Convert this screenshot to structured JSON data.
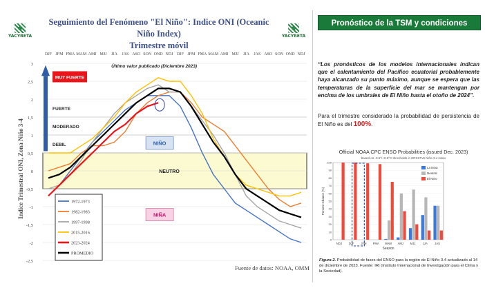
{
  "left_panel": {
    "logo_text": "YACYRETA",
    "title_line1": "Seguimiento del Fenómeno \"El Niño\": Indice ONI (Oceanic Niño Index)",
    "title_line2": "Trimestre móvil",
    "ylabel": "Indice Trimestral ONI, Zona Niño 3-4",
    "last_value_note": "Último valor publicado  (Diciembre 2023)",
    "source": "Fuente de datos: NOAA, OMM"
  },
  "chart_data": [
    {
      "type": "line",
      "categories": [
        "DJF",
        "JFM",
        "FMA",
        "MAM",
        "AMJ",
        "MJJ",
        "JJA",
        "JAS",
        "ASO",
        "SON",
        "OND",
        "NDJ",
        "DJF",
        "JFM",
        "FMA",
        "MAM",
        "AMJ",
        "MJJ",
        "JJA",
        "JAS",
        "ASO",
        "SON",
        "OND",
        "NDJ"
      ],
      "ylim": [
        -2.5,
        3
      ],
      "yticks": [
        "3",
        "2,5",
        "2",
        "1,5",
        "1",
        "0,5",
        "0",
        "-0,5",
        "-1",
        "-1,5",
        "-2",
        "-2,5"
      ],
      "ytick_values": [
        3,
        2.5,
        2,
        1.5,
        1,
        0.5,
        0,
        -0.5,
        -1,
        -1.5,
        -2,
        -2.5
      ],
      "bands": [
        {
          "label": "MUY FUERTE",
          "from": 2.0,
          "to": 2.8
        },
        {
          "label": "FUERTE",
          "from": 1.5,
          "to": 2.0
        },
        {
          "label": "MODERADO",
          "from": 1.0,
          "to": 1.5
        },
        {
          "label": "DEBIL",
          "from": 0.5,
          "to": 1.0
        },
        {
          "label": "NEUTRO",
          "from": -0.5,
          "to": 0.5
        }
      ],
      "region_labels": {
        "nino": "NIÑO",
        "nina": "NIÑA"
      },
      "series": [
        {
          "name": "1972-1973",
          "color": "#4472c4",
          "values": [
            -0.7,
            -0.4,
            0.0,
            0.4,
            0.8,
            1.1,
            1.4,
            1.7,
            1.9,
            2.1,
            2.1,
            2.1,
            1.8,
            1.2,
            0.5,
            -0.1,
            -0.5,
            -0.9,
            -1.1,
            -1.3,
            -1.5,
            -1.7,
            -1.9,
            -2.0
          ]
        },
        {
          "name": "1982-1983",
          "color": "#ed7d31",
          "values": [
            0.0,
            0.1,
            0.2,
            0.5,
            0.7,
            0.7,
            0.8,
            1.1,
            1.6,
            1.9,
            2.1,
            2.2,
            2.2,
            1.9,
            1.5,
            1.3,
            1.1,
            0.7,
            0.3,
            -0.1,
            -0.5,
            -0.8,
            -1.0,
            -0.9
          ]
        },
        {
          "name": "1997-1998",
          "color": "#a5a5a5",
          "values": [
            -0.5,
            -0.4,
            -0.1,
            0.3,
            0.8,
            1.2,
            1.6,
            1.9,
            2.1,
            2.3,
            2.4,
            2.2,
            2.2,
            1.8,
            1.4,
            1.0,
            0.5,
            -0.1,
            -0.7,
            -1.0,
            -1.2,
            -1.4,
            -1.5,
            -1.6
          ]
        },
        {
          "name": "2015-2016",
          "color": "#ffc000",
          "values": [
            0.5,
            0.5,
            0.5,
            0.7,
            0.9,
            1.2,
            1.5,
            1.9,
            2.2,
            2.4,
            2.6,
            2.5,
            2.5,
            2.1,
            1.6,
            0.9,
            0.4,
            -0.1,
            -0.4,
            -0.5,
            -0.6,
            -0.7,
            -0.7,
            -0.6
          ]
        },
        {
          "name": "2023-2024",
          "color": "#e8151b",
          "values": [
            -0.7,
            -0.4,
            -0.1,
            0.2,
            0.5,
            0.8,
            1.1,
            1.3,
            1.6,
            1.8,
            1.9,
            null,
            null,
            null,
            null,
            null,
            null,
            null,
            null,
            null,
            null,
            null,
            null,
            null
          ]
        },
        {
          "name": "PROMEDIO",
          "color": "#000000",
          "values": [
            -0.2,
            -0.1,
            0.1,
            0.4,
            0.7,
            1.0,
            1.3,
            1.6,
            1.9,
            2.1,
            2.3,
            2.3,
            2.2,
            1.8,
            1.3,
            0.8,
            0.4,
            -0.1,
            -0.5,
            -0.7,
            -0.9,
            -1.1,
            -1.2,
            -1.3
          ]
        }
      ]
    },
    {
      "type": "bar",
      "title": "Official NOAA CPC ENSO Probabilities (issued Dec. 2023)",
      "subtitle": "based on -0.5°/+0.5°C thresholds in ERSSTv5 Niño-3.4 index",
      "xlabel": "Season",
      "ylabel": "Percent Chance (%)",
      "ylim": [
        0,
        100
      ],
      "yticks": [
        0,
        10,
        20,
        30,
        40,
        50,
        60,
        70,
        80,
        90,
        100
      ],
      "categories": [
        "NDJ",
        "DJF",
        "JFM",
        "FMA",
        "MAM",
        "AMJ",
        "MJJ",
        "JJA",
        "JAS"
      ],
      "series": [
        {
          "name": "La Nina",
          "color": "#3b78d8",
          "values": [
            0,
            0,
            0,
            0,
            1,
            3,
            15,
            32,
            44
          ]
        },
        {
          "name": "Neutral",
          "color": "#b7b7b7",
          "values": [
            0,
            0,
            0,
            0,
            25,
            60,
            65,
            55,
            44
          ]
        },
        {
          "name": "El Nino",
          "color": "#ef4b3c",
          "values": [
            100,
            100,
            99,
            98,
            75,
            37,
            20,
            12,
            12
          ]
        }
      ]
    }
  ],
  "right_panel": {
    "title": "Pronóstico de la TSM y condiciones ENSO.",
    "quote": "“Los pronósticos de los modelos internacionales indican que el calentamiento del Pacífico ecuatorial probablemente haya alcanzado su punto máximo, aunque se espera que las temperaturas de la superficie del mar se mantengan por encima de los umbrales de El Niño hasta el otoño de 2024”.",
    "persist_text": "Para el trimestre considerado la probabilidad de persistencia de El Niño es del",
    "persist_value": "100%",
    "persist_end": ".",
    "caption_bold": "Figura 2.",
    "caption": " Probabilidad de fases del ENSO para la región de El Niño 3.4 actualizado al 14 de diciembre de 2023. Fuente: IRI (Instituto Internacional de Investigación para el Clima y la Sociedad)."
  }
}
